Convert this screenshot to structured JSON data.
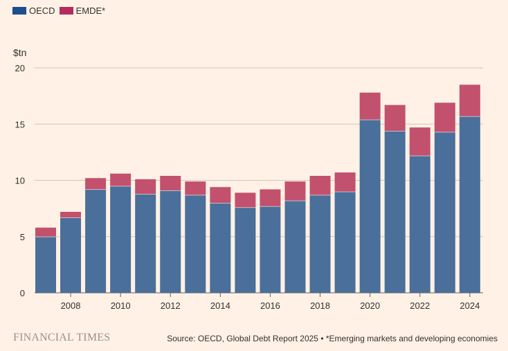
{
  "chart_data": {
    "type": "bar",
    "stacked": true,
    "unit_label": "$tn",
    "ylim": [
      0,
      20
    ],
    "yticks": [
      0,
      5,
      10,
      15,
      20
    ],
    "grid": true,
    "legend_position": "top-left",
    "categories": [
      "2007",
      "2008",
      "2009",
      "2010",
      "2011",
      "2012",
      "2013",
      "2014",
      "2015",
      "2016",
      "2017",
      "2018",
      "2019",
      "2020",
      "2021",
      "2022",
      "2023",
      "2024"
    ],
    "xtick_labels": [
      "2008",
      "2010",
      "2012",
      "2014",
      "2016",
      "2018",
      "2020",
      "2022",
      "2024"
    ],
    "series": [
      {
        "name": "OECD",
        "color": "#4A6F9A",
        "values": [
          5.0,
          6.7,
          9.2,
          9.5,
          8.8,
          9.1,
          8.7,
          8.0,
          7.6,
          7.7,
          8.2,
          8.7,
          9.0,
          15.4,
          14.4,
          12.2,
          14.3,
          15.7
        ]
      },
      {
        "name": "EMDE*",
        "color": "#C2516E",
        "values": [
          0.8,
          0.5,
          1.0,
          1.1,
          1.3,
          1.3,
          1.2,
          1.4,
          1.3,
          1.5,
          1.7,
          1.7,
          1.7,
          2.4,
          2.3,
          2.5,
          2.6,
          2.8
        ]
      }
    ]
  },
  "legend": {
    "oecd": "OECD",
    "emde": "EMDE*",
    "oecd_color": "#1F4E8C",
    "emde_color": "#B52B5D"
  },
  "footer": {
    "brand": "FINANCIAL TIMES",
    "source": "Source: OECD, Global Debt Report 2025 • *Emerging markets and developing economies"
  }
}
